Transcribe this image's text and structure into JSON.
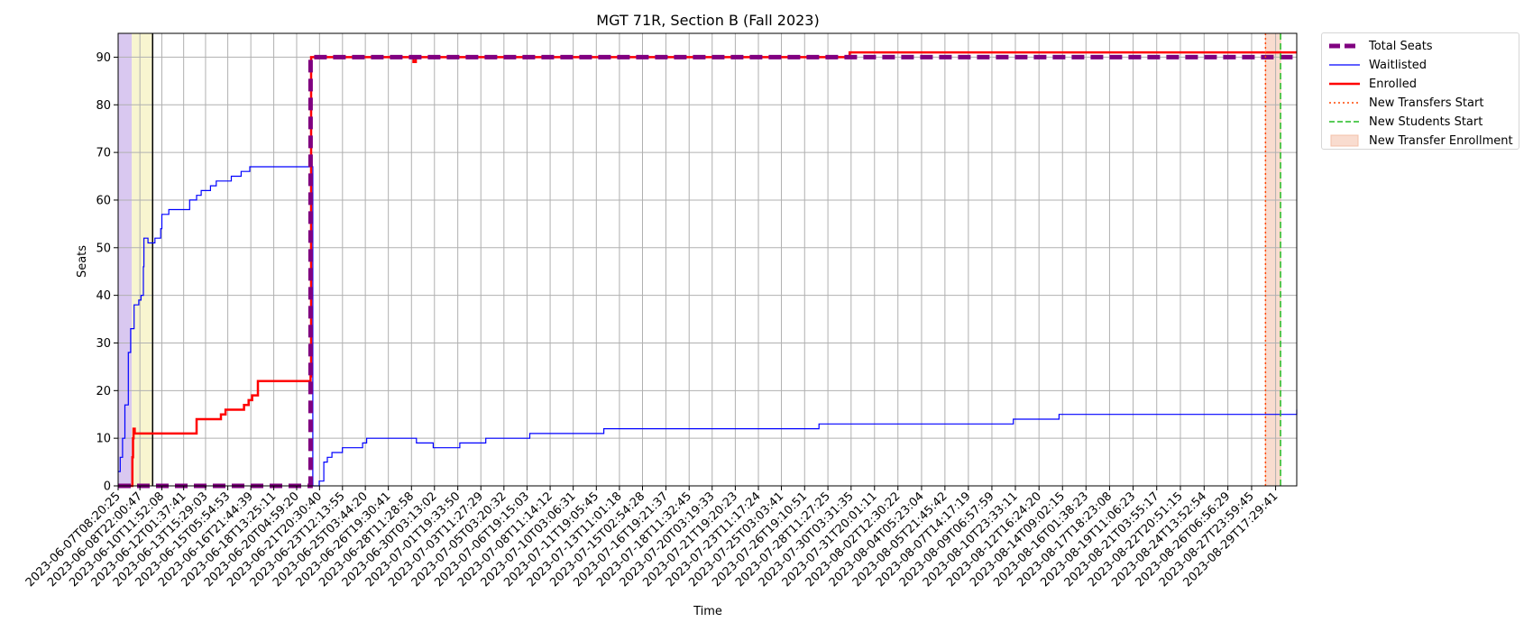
{
  "chart_data": {
    "type": "line",
    "title": "MGT 71R, Section B (Fall 2023)",
    "xlabel": "Time",
    "ylabel": "Seats",
    "ylim": [
      0,
      95
    ],
    "yticks": [
      0,
      10,
      20,
      30,
      40,
      50,
      60,
      70,
      80,
      90
    ],
    "xlim": [
      "2023-06-07T08:20:25",
      "2023-08-31T06:00:00"
    ],
    "grid": true,
    "legend_placement": "outside-right-top",
    "xtick_labels": [
      "2023-06-07T08:20:25",
      "2023-06-08T22:00:47",
      "2023-06-10T11:52:08",
      "2023-06-12T01:37:41",
      "2023-06-13T15:29:03",
      "2023-06-15T05:54:53",
      "2023-06-16T21:44:39",
      "2023-06-18T13:25:11",
      "2023-06-20T04:59:20",
      "2023-06-21T20:30:40",
      "2023-06-23T12:13:55",
      "2023-06-25T03:44:20",
      "2023-06-26T19:30:41",
      "2023-06-28T11:28:58",
      "2023-06-30T03:13:02",
      "2023-07-01T19:33:50",
      "2023-07-03T11:27:29",
      "2023-07-05T03:20:32",
      "2023-07-06T19:15:03",
      "2023-07-08T11:14:12",
      "2023-07-10T03:06:31",
      "2023-07-11T19:05:45",
      "2023-07-13T11:01:18",
      "2023-07-15T02:54:28",
      "2023-07-16T19:21:37",
      "2023-07-18T11:32:45",
      "2023-07-20T03:19:33",
      "2023-07-21T19:20:23",
      "2023-07-23T11:17:24",
      "2023-07-25T03:03:41",
      "2023-07-26T19:10:51",
      "2023-07-28T11:27:25",
      "2023-07-30T03:31:35",
      "2023-07-31T20:01:11",
      "2023-08-02T12:30:22",
      "2023-08-04T05:23:04",
      "2023-08-05T21:45:42",
      "2023-08-07T14:17:19",
      "2023-08-09T06:57:59",
      "2023-08-10T23:33:11",
      "2023-08-12T16:24:20",
      "2023-08-14T09:02:15",
      "2023-08-16T01:38:23",
      "2023-08-17T18:23:08",
      "2023-08-19T11:06:23",
      "2023-08-21T03:55:17",
      "2023-08-22T20:51:15",
      "2023-08-24T13:52:54",
      "2023-08-26T06:56:29",
      "2023-08-27T23:59:45",
      "2023-08-29T17:29:41"
    ],
    "series": [
      {
        "name": "Total Seats",
        "color": "#800080",
        "style": "dashed-thick",
        "x": [
          "2023-06-07T08:20:25",
          "2023-06-21T05:00:00",
          "2023-06-21T05:00:00",
          "2023-07-30T00:00:00",
          "2023-08-31T06:00:00"
        ],
        "values": [
          0,
          0,
          90,
          90,
          90
        ]
      },
      {
        "name": "Waitlisted",
        "color": "#0000ff",
        "style": "solid-thin",
        "x": [
          "2023-06-07T08:20:25",
          "2023-06-07T12:00:00",
          "2023-06-07T16:00:00",
          "2023-06-07T20:00:00",
          "2023-06-08T02:00:00",
          "2023-06-08T06:00:00",
          "2023-06-08T12:00:00",
          "2023-06-08T20:00:00",
          "2023-06-09T00:00:00",
          "2023-06-09T04:00:00",
          "2023-06-09T05:00:00",
          "2023-06-09T12:00:00",
          "2023-06-10T00:00:00",
          "2023-06-10T10:00:00",
          "2023-06-10T12:00:00",
          "2023-06-11T00:00:00",
          "2023-06-11T05:00:00",
          "2023-06-12T00:00:00",
          "2023-06-12T12:00:00",
          "2023-06-13T00:00:00",
          "2023-06-13T08:00:00",
          "2023-06-13T18:00:00",
          "2023-06-14T00:00:00",
          "2023-06-14T10:00:00",
          "2023-06-14T18:00:00",
          "2023-06-15T04:00:00",
          "2023-06-15T12:00:00",
          "2023-06-16T05:00:00",
          "2023-06-16T20:00:00",
          "2023-06-18T05:00:00",
          "2023-06-21T05:00:00",
          "2023-06-21T09:00:00",
          "2023-06-21T20:00:00",
          "2023-06-22T04:00:00",
          "2023-06-22T10:00:00",
          "2023-06-22T18:00:00",
          "2023-06-23T00:00:00",
          "2023-06-23T12:00:00",
          "2023-06-24T23:00:00",
          "2023-06-25T06:00:00",
          "2023-06-27T15:00:00",
          "2023-06-28T20:00:00",
          "2023-06-30T01:00:00",
          "2023-07-01T23:00:00",
          "2023-07-03T20:00:00",
          "2023-07-06T00:00:00",
          "2023-07-07T00:00:00",
          "2023-07-11T02:00:00",
          "2023-07-12T08:00:00",
          "2023-07-20T09:00:00",
          "2023-07-27T20:00:00",
          "2023-08-04T08:00:00",
          "2023-08-10T20:00:00",
          "2023-08-14T03:00:00",
          "2023-08-31T06:00:00"
        ],
        "values": [
          3,
          6,
          10,
          17,
          28,
          33,
          38,
          39,
          40,
          46,
          52,
          51,
          52,
          54,
          57,
          58,
          58,
          58,
          60,
          61,
          62,
          62,
          63,
          64,
          64,
          64,
          65,
          66,
          67,
          67,
          67,
          0,
          1,
          5,
          6,
          7,
          7,
          8,
          9,
          10,
          10,
          9,
          8,
          9,
          10,
          10,
          11,
          11,
          12,
          12,
          13,
          13,
          14,
          15,
          16
        ]
      },
      {
        "name": "Enrolled",
        "color": "#ff0000",
        "style": "solid-thick",
        "x": [
          "2023-06-07T08:20:25",
          "2023-06-08T08:00:00",
          "2023-06-08T09:00:00",
          "2023-06-08T10:00:00",
          "2023-06-08T11:00:00",
          "2023-06-08T13:00:00",
          "2023-06-08T18:00:00",
          "2023-06-12T20:00:00",
          "2023-06-13T00:00:00",
          "2023-06-14T05:00:00",
          "2023-06-14T18:00:00",
          "2023-06-15T02:00:00",
          "2023-06-15T10:00:00",
          "2023-06-16T10:00:00",
          "2023-06-16T18:00:00",
          "2023-06-17T00:00:00",
          "2023-06-17T10:00:00",
          "2023-06-21T05:00:00",
          "2023-06-21T06:00:00",
          "2023-06-28T12:00:00",
          "2023-06-28T15:00:00",
          "2023-06-28T19:00:00",
          "2023-07-30T00:00:00",
          "2023-07-30T01:00:00",
          "2023-08-31T06:00:00"
        ],
        "values": [
          0,
          0,
          6,
          10,
          12,
          11,
          11,
          11,
          14,
          14,
          15,
          16,
          16,
          17,
          18,
          19,
          22,
          23,
          90,
          90,
          89,
          90,
          90,
          91,
          91
        ]
      }
    ],
    "vlines": [
      {
        "name": "New Transfers Start",
        "x": "2023-08-29T00:00:00",
        "color": "#ff4500",
        "style": "dotted"
      },
      {
        "name": "New Students Start",
        "x": "2023-08-30T02:00:00",
        "color": "#22bb22",
        "style": "dashed"
      }
    ],
    "regions": [
      {
        "name": "New Transfer Enrollment",
        "x0": "2023-08-29T00:00:00",
        "x1": "2023-08-30T02:00:00",
        "color": "#f4c0a8"
      }
    ],
    "unlabeled_regions": [
      {
        "x0": "2023-06-07T08:20:25",
        "x1": "2023-06-08T08:00:00",
        "color": "#d9c8f0"
      },
      {
        "x0": "2023-06-08T08:00:00",
        "x1": "2023-06-09T20:00:00",
        "color": "#f8f5d0"
      }
    ],
    "unlabeled_vlines": [
      {
        "x": "2023-06-09T20:00:00",
        "color": "#000000"
      }
    ]
  }
}
